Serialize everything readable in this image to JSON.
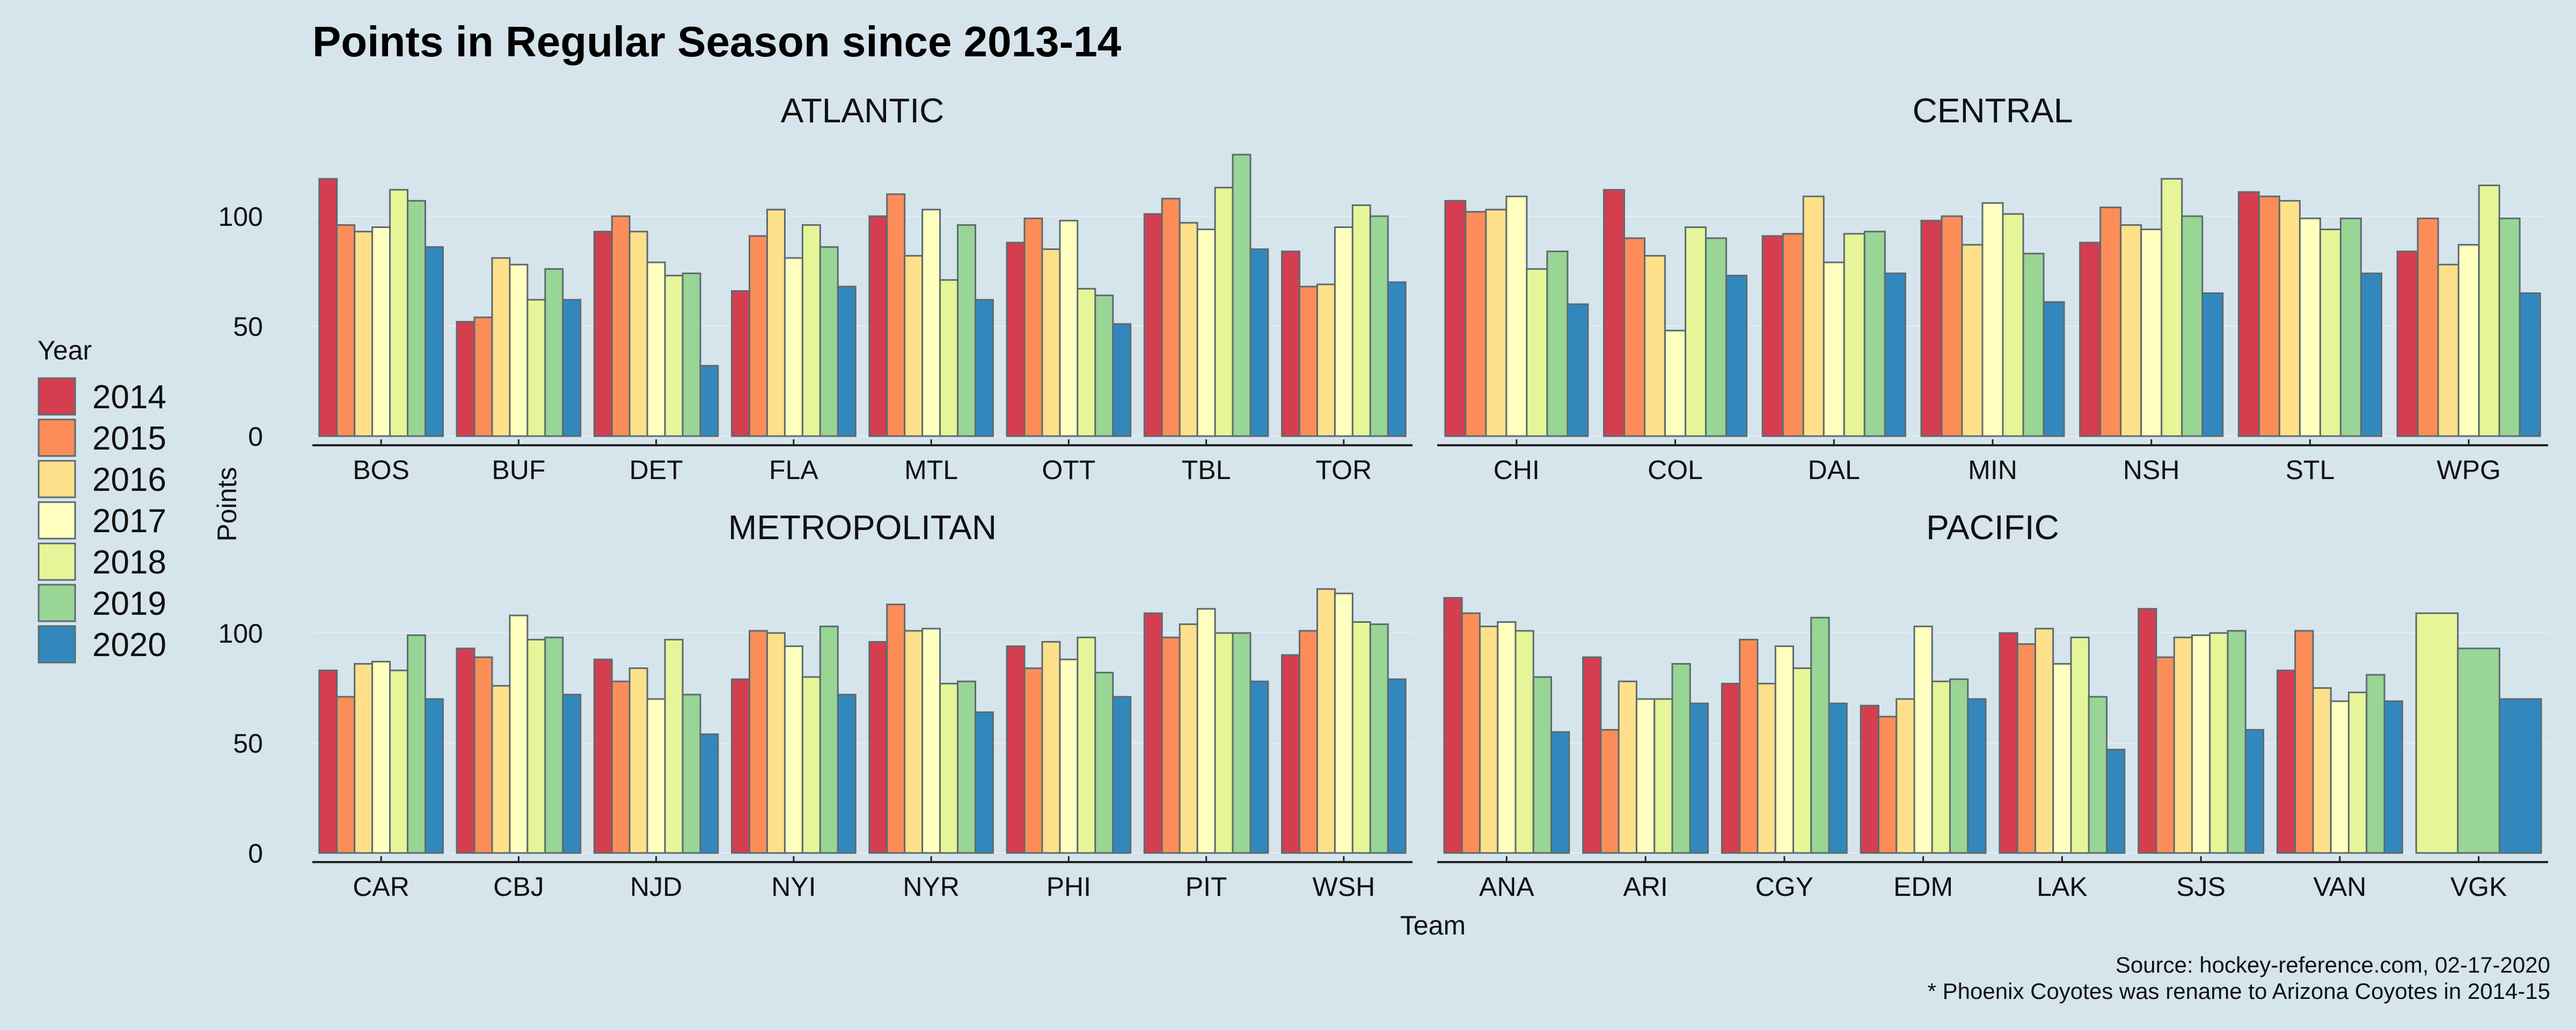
{
  "chart_data": {
    "type": "bar",
    "title": "Points in Regular Season since 2013-14",
    "xlabel": "Team",
    "ylabel": "Points",
    "ylim": [
      0,
      130
    ],
    "yticks": [
      0,
      50,
      100
    ],
    "grid": true,
    "legend": {
      "title": "Year",
      "position": "left",
      "entries": [
        "2014",
        "2015",
        "2016",
        "2017",
        "2018",
        "2019",
        "2020"
      ]
    },
    "colors": {
      "2014": "#d53e4f",
      "2015": "#fc8d59",
      "2016": "#fee08b",
      "2017": "#ffffbf",
      "2018": "#e6f598",
      "2019": "#99d594",
      "2020": "#3288bd"
    },
    "facets": [
      {
        "name": "ATLANTIC",
        "teams": [
          {
            "team": "BOS",
            "values": [
              117,
              96,
              93,
              95,
              112,
              107,
              86
            ]
          },
          {
            "team": "BUF",
            "values": [
              52,
              54,
              81,
              78,
              62,
              76,
              62
            ]
          },
          {
            "team": "DET",
            "values": [
              93,
              100,
              93,
              79,
              73,
              74,
              32
            ]
          },
          {
            "team": "FLA",
            "values": [
              66,
              91,
              103,
              81,
              96,
              86,
              68
            ]
          },
          {
            "team": "MTL",
            "values": [
              100,
              110,
              82,
              103,
              71,
              96,
              62
            ]
          },
          {
            "team": "OTT",
            "values": [
              88,
              99,
              85,
              98,
              67,
              64,
              51
            ]
          },
          {
            "team": "TBL",
            "values": [
              101,
              108,
              97,
              94,
              113,
              128,
              85
            ]
          },
          {
            "team": "TOR",
            "values": [
              84,
              68,
              69,
              95,
              105,
              100,
              70
            ]
          }
        ]
      },
      {
        "name": "CENTRAL",
        "teams": [
          {
            "team": "CHI",
            "values": [
              107,
              102,
              103,
              109,
              76,
              84,
              60
            ]
          },
          {
            "team": "COL",
            "values": [
              112,
              90,
              82,
              48,
              95,
              90,
              73
            ]
          },
          {
            "team": "DAL",
            "values": [
              91,
              92,
              109,
              79,
              92,
              93,
              74
            ]
          },
          {
            "team": "MIN",
            "values": [
              98,
              100,
              87,
              106,
              101,
              83,
              61
            ]
          },
          {
            "team": "NSH",
            "values": [
              88,
              104,
              96,
              94,
              117,
              100,
              65
            ]
          },
          {
            "team": "STL",
            "values": [
              111,
              109,
              107,
              99,
              94,
              99,
              74
            ]
          },
          {
            "team": "WPG",
            "values": [
              84,
              99,
              78,
              87,
              114,
              99,
              65
            ]
          }
        ]
      },
      {
        "name": "METROPOLITAN",
        "teams": [
          {
            "team": "CAR",
            "values": [
              83,
              71,
              86,
              87,
              83,
              99,
              70
            ]
          },
          {
            "team": "CBJ",
            "values": [
              93,
              89,
              76,
              108,
              97,
              98,
              72
            ]
          },
          {
            "team": "NJD",
            "values": [
              88,
              78,
              84,
              70,
              97,
              72,
              54
            ]
          },
          {
            "team": "NYI",
            "values": [
              79,
              101,
              100,
              94,
              80,
              103,
              72
            ]
          },
          {
            "team": "NYR",
            "values": [
              96,
              113,
              101,
              102,
              77,
              78,
              64
            ]
          },
          {
            "team": "PHI",
            "values": [
              94,
              84,
              96,
              88,
              98,
              82,
              71
            ]
          },
          {
            "team": "PIT",
            "values": [
              109,
              98,
              104,
              111,
              100,
              100,
              78
            ]
          },
          {
            "team": "WSH",
            "values": [
              90,
              101,
              120,
              118,
              105,
              104,
              79
            ]
          }
        ]
      },
      {
        "name": "PACIFIC",
        "teams": [
          {
            "team": "ANA",
            "values": [
              116,
              109,
              103,
              105,
              101,
              80,
              55
            ]
          },
          {
            "team": "ARI",
            "values": [
              89,
              56,
              78,
              70,
              70,
              86,
              68
            ]
          },
          {
            "team": "CGY",
            "values": [
              77,
              97,
              77,
              94,
              84,
              107,
              68
            ]
          },
          {
            "team": "EDM",
            "values": [
              67,
              62,
              70,
              103,
              78,
              79,
              70
            ]
          },
          {
            "team": "LAK",
            "values": [
              100,
              95,
              102,
              86,
              98,
              71,
              47
            ]
          },
          {
            "team": "SJS",
            "values": [
              111,
              89,
              98,
              99,
              100,
              101,
              56
            ]
          },
          {
            "team": "VAN",
            "values": [
              83,
              101,
              75,
              69,
              73,
              81,
              69
            ]
          },
          {
            "team": "VGK",
            "values": [
              null,
              null,
              null,
              null,
              109,
              93,
              70
            ]
          }
        ]
      }
    ],
    "caption": [
      "Source: hockey-reference.com, 02-17-2020",
      "* Phoenix Coyotes was rename to Arizona Coyotes in 2014-15"
    ]
  }
}
